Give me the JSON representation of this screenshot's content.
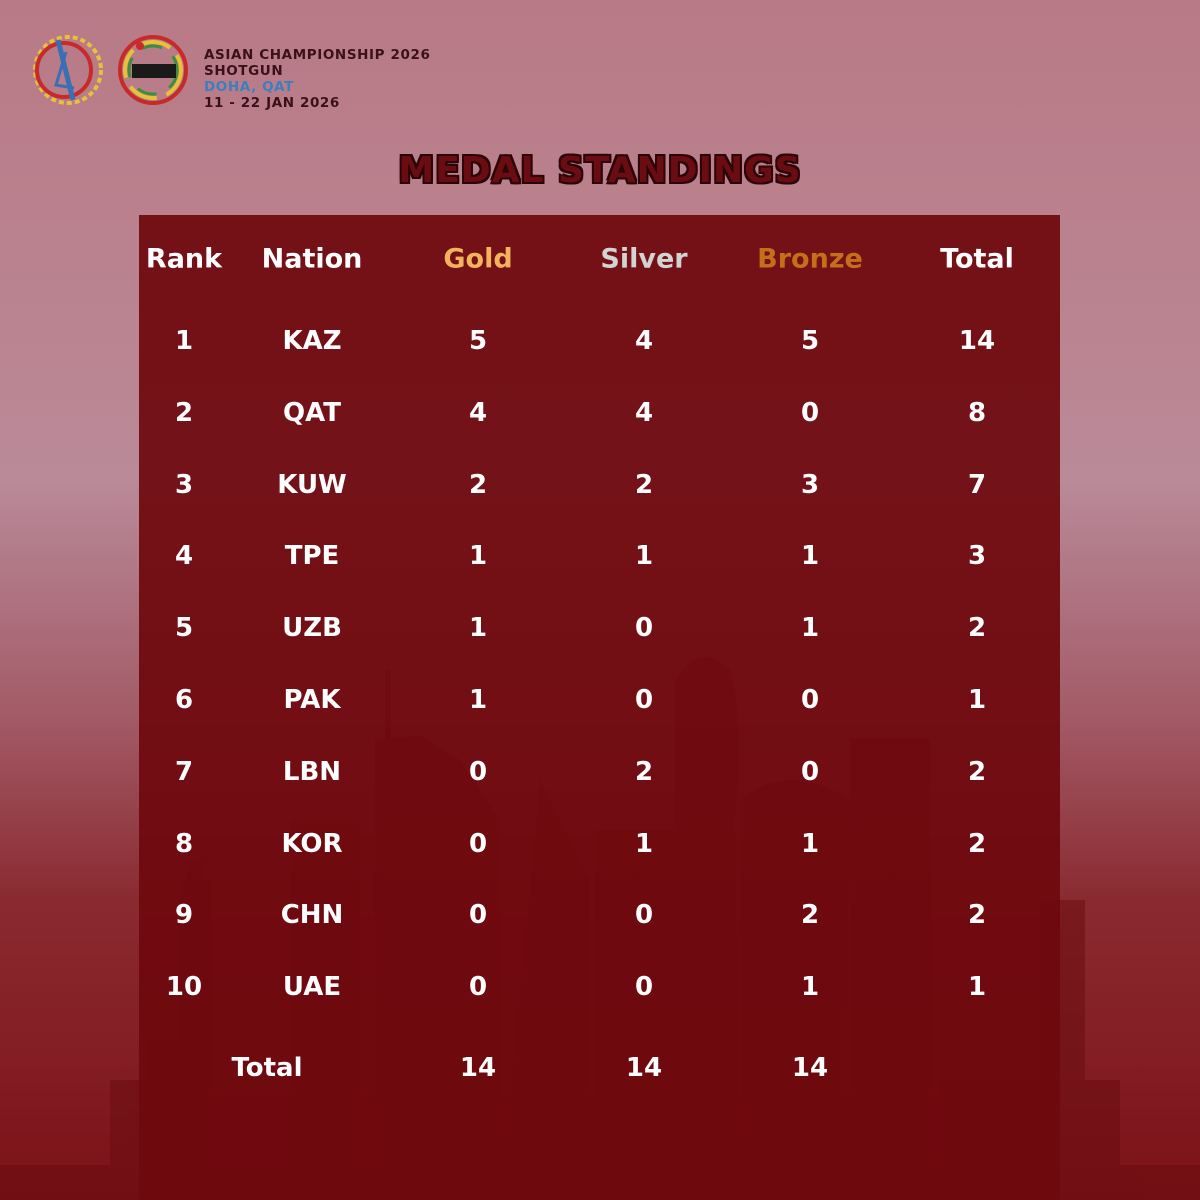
{
  "header": {
    "event_title": "ASIAN CHAMPIONSHIP 2026",
    "discipline": "SHOTGUN",
    "location": "DOHA, QAT",
    "dates": "11 - 22 JAN 2026",
    "logo_left_icon": "asian-shooting-confederation-logo",
    "logo_right_icon": "qatar-shooting-federation-logo"
  },
  "title": "MEDAL STANDINGS",
  "table": {
    "headers": {
      "rank": "Rank",
      "nation": "Nation",
      "gold": "Gold",
      "silver": "Silver",
      "bronze": "Bronze",
      "total": "Total"
    },
    "rows": [
      {
        "rank": "1",
        "nation": "KAZ",
        "gold": "5",
        "silver": "4",
        "bronze": "5",
        "total": "14"
      },
      {
        "rank": "2",
        "nation": "QAT",
        "gold": "4",
        "silver": "4",
        "bronze": "0",
        "total": "8"
      },
      {
        "rank": "3",
        "nation": "KUW",
        "gold": "2",
        "silver": "2",
        "bronze": "3",
        "total": "7"
      },
      {
        "rank": "4",
        "nation": "TPE",
        "gold": "1",
        "silver": "1",
        "bronze": "1",
        "total": "3"
      },
      {
        "rank": "5",
        "nation": "UZB",
        "gold": "1",
        "silver": "0",
        "bronze": "1",
        "total": "2"
      },
      {
        "rank": "6",
        "nation": "PAK",
        "gold": "1",
        "silver": "0",
        "bronze": "0",
        "total": "1"
      },
      {
        "rank": "7",
        "nation": "LBN",
        "gold": "0",
        "silver": "2",
        "bronze": "0",
        "total": "2"
      },
      {
        "rank": "8",
        "nation": "KOR",
        "gold": "0",
        "silver": "1",
        "bronze": "1",
        "total": "2"
      },
      {
        "rank": "9",
        "nation": "CHN",
        "gold": "0",
        "silver": "0",
        "bronze": "2",
        "total": "2"
      },
      {
        "rank": "10",
        "nation": "UAE",
        "gold": "0",
        "silver": "0",
        "bronze": "1",
        "total": "1"
      }
    ],
    "totals": {
      "label": "Total",
      "gold": "14",
      "silver": "14",
      "bronze": "14"
    }
  },
  "colors": {
    "gold_header": "#f2b25e",
    "silver_header": "#d3d3d3",
    "bronze_header": "#c66f1a",
    "panel": "#6e090e",
    "title": "#6b0c12"
  }
}
